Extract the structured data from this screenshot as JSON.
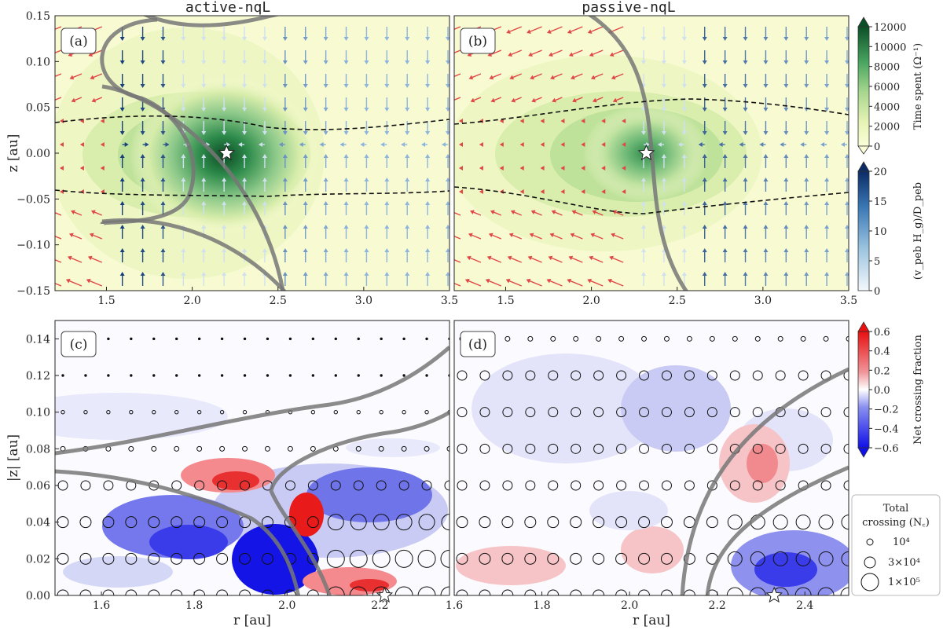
{
  "chart_data": [
    {
      "type": "heatmap",
      "panel_label": "(a)",
      "title": "active-nqL",
      "xlabel": "",
      "ylabel": "z [au]",
      "xlim": [
        1.2,
        3.5
      ],
      "ylim": [
        -0.15,
        0.15
      ],
      "xticks": [
        "1.5",
        "2.0",
        "2.5",
        "3.0",
        "3.5"
      ],
      "yticks": [
        "0.15",
        "0.10",
        "0.05",
        "0.00",
        "−0.05",
        "−0.10",
        "−0.15"
      ],
      "star": {
        "r": 2.2,
        "z": 0.0
      },
      "dashed_z": [
        0.035,
        -0.04
      ],
      "peak_time_spent": 12000
    },
    {
      "type": "heatmap",
      "panel_label": "(b)",
      "title": "passive-nqL",
      "xlabel": "",
      "ylabel": "",
      "xlim": [
        1.2,
        3.5
      ],
      "ylim": [
        -0.15,
        0.15
      ],
      "xticks": [
        "1.5",
        "2.0",
        "2.5",
        "3.0",
        "3.5"
      ],
      "star": {
        "r": 2.32,
        "z": 0.0
      },
      "dashed_z": [
        0.04,
        -0.045
      ],
      "peak_time_spent": 8000
    },
    {
      "type": "heatmap",
      "panel_label": "(c)",
      "xlabel": "r [au]",
      "ylabel": "|z| [au]",
      "xlim": [
        1.5,
        2.35
      ],
      "ylim": [
        0.0,
        0.15
      ],
      "xticks": [
        "1.6",
        "1.8",
        "2.0",
        "2.2"
      ],
      "yticks": [
        "0.14",
        "0.12",
        "0.10",
        "0.08",
        "0.06",
        "0.04",
        "0.02",
        "0.00"
      ],
      "star": {
        "r": 2.21,
        "z": 0.0
      }
    },
    {
      "type": "heatmap",
      "panel_label": "(d)",
      "xlabel": "r [au]",
      "ylabel": "",
      "xlim": [
        1.6,
        2.5
      ],
      "ylim": [
        0.0,
        0.15
      ],
      "xticks": [
        "1.6",
        "1.8",
        "2.0",
        "2.2",
        "2.4"
      ],
      "star": {
        "r": 2.33,
        "z": 0.0
      }
    }
  ],
  "colorbars": {
    "time_spent": {
      "label": "Time spent (Ω⁻¹)",
      "ticks": [
        "12000",
        "10000",
        "8000",
        "6000",
        "4000",
        "2000",
        "0"
      ],
      "range": [
        0,
        12000
      ]
    },
    "velocity": {
      "label": "(v_peb H_g)/D_peb",
      "ticks": [
        "20",
        "15",
        "10",
        "5",
        "0"
      ],
      "range": [
        0,
        20
      ]
    },
    "net_crossing": {
      "label": "Net crossing fraction",
      "ticks": [
        "0.6",
        "0.4",
        "0.2",
        "0.0",
        "−0.2",
        "−0.4",
        "−0.6"
      ],
      "range": [
        -0.6,
        0.6
      ]
    }
  },
  "legend": {
    "title_line1": "Total",
    "title_line2": "crossing (N꜀)",
    "entries": [
      "10⁴",
      "3×10⁴",
      "1×10⁵"
    ],
    "placement": "right"
  },
  "colors": {
    "green_dark": "#0e5a2c",
    "green_light": "#f8fbd2",
    "arrow_red": "#e04848",
    "arrow_blue": "#163d7a",
    "red": "#e01010",
    "blue": "#1020e0",
    "gray_curve": "#777777"
  }
}
